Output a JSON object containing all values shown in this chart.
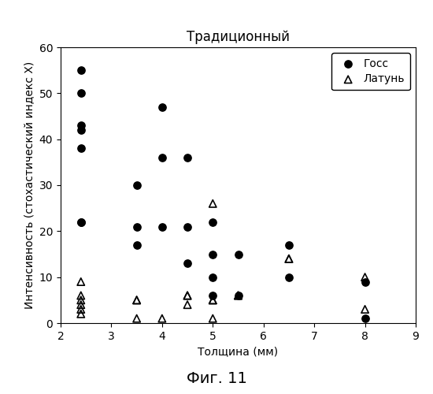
{
  "title": "Традиционный",
  "xlabel": "Толщина (мм)",
  "ylabel": "Интенсивность (стохастический индекс X)",
  "caption": "Фиг. 11",
  "xlim": [
    2,
    9
  ],
  "ylim": [
    0,
    60
  ],
  "xticks": [
    2,
    3,
    4,
    5,
    6,
    7,
    8,
    9
  ],
  "yticks": [
    0,
    10,
    20,
    30,
    40,
    50,
    60
  ],
  "goss_x": [
    2.4,
    2.4,
    2.4,
    2.4,
    2.4,
    2.4,
    2.4,
    3.5,
    3.5,
    3.5,
    4.0,
    4.0,
    4.0,
    4.5,
    4.5,
    4.5,
    5.0,
    5.0,
    5.0,
    5.0,
    5.5,
    5.5,
    6.5,
    6.5,
    8.0,
    8.0
  ],
  "goss_y": [
    55,
    50,
    43,
    42,
    38,
    22,
    22,
    30,
    21,
    17,
    47,
    36,
    21,
    36,
    21,
    13,
    22,
    15,
    10,
    6,
    15,
    6,
    17,
    10,
    9,
    1
  ],
  "brass_x": [
    2.4,
    2.4,
    2.4,
    2.4,
    2.4,
    2.4,
    3.5,
    3.5,
    3.5,
    4.0,
    4.5,
    4.5,
    4.5,
    5.0,
    5.0,
    5.0,
    5.0,
    5.5,
    5.5,
    6.5,
    6.5,
    8.0,
    8.0
  ],
  "brass_y": [
    9,
    6,
    5,
    4,
    3,
    2,
    5,
    5,
    1,
    1,
    6,
    6,
    4,
    26,
    5,
    5,
    1,
    6,
    6,
    14,
    14,
    10,
    3
  ],
  "legend_goss": "Госс",
  "legend_brass": "Латунь",
  "bg_color": "#ffffff",
  "marker_color": "#000000",
  "title_fontsize": 12,
  "label_fontsize": 10,
  "tick_fontsize": 10,
  "legend_fontsize": 10,
  "caption_fontsize": 14
}
